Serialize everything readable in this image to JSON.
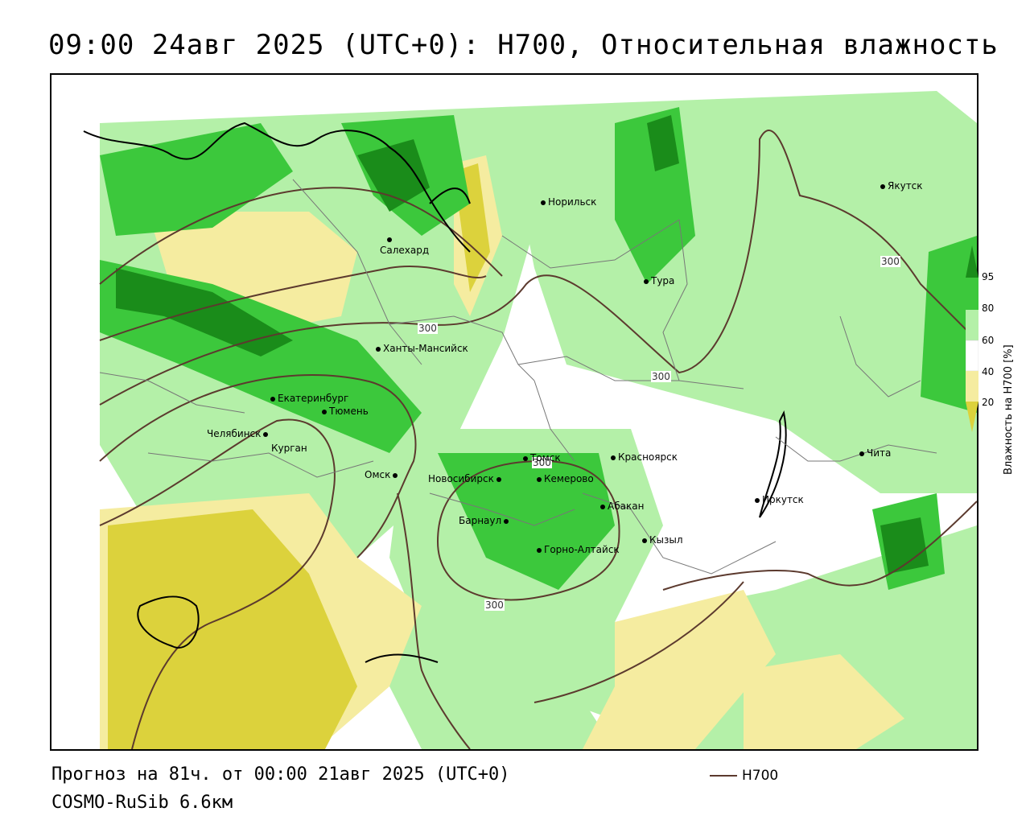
{
  "title": "09:00 24авг 2025 (UTC+0): H700, Относительная влажность",
  "forecast_line": "Прогноз на 81ч. от 00:00 21авг 2025 (UTC+0)",
  "model_line": "COSMO-RuSib 6.6км",
  "legend": {
    "series_label": "H700",
    "line_color": "#5c3a2e"
  },
  "colorbar": {
    "label": "Влажность на H700 [%]",
    "ticks": [
      "95",
      "80",
      "60",
      "40",
      "20"
    ],
    "colors": {
      "very_wet": "#1a8c1a",
      "wet": "#3cc83c",
      "moist": "#b4f0a8",
      "neutral": "#ffffff",
      "dry": "#f5eca0",
      "very_dry": "#dcd23c"
    }
  },
  "isoline_labels": [
    "300",
    "300",
    "300",
    "300",
    "300"
  ],
  "cities": [
    {
      "name": "Якутск"
    },
    {
      "name": "Норильск"
    },
    {
      "name": "Салехард"
    },
    {
      "name": "Тура"
    },
    {
      "name": "Ханты-Мансийск"
    },
    {
      "name": "Екатеринбург"
    },
    {
      "name": "Тюмень"
    },
    {
      "name": "Челябинск"
    },
    {
      "name": "Курган"
    },
    {
      "name": "Омск"
    },
    {
      "name": "Томск"
    },
    {
      "name": "Новосибирск"
    },
    {
      "name": "Кемерово"
    },
    {
      "name": "Красноярск"
    },
    {
      "name": "Абакан"
    },
    {
      "name": "Барнаул"
    },
    {
      "name": "Горно-Алтайск"
    },
    {
      "name": "Кызыл"
    },
    {
      "name": "Иркутск"
    },
    {
      "name": "Чита"
    }
  ]
}
